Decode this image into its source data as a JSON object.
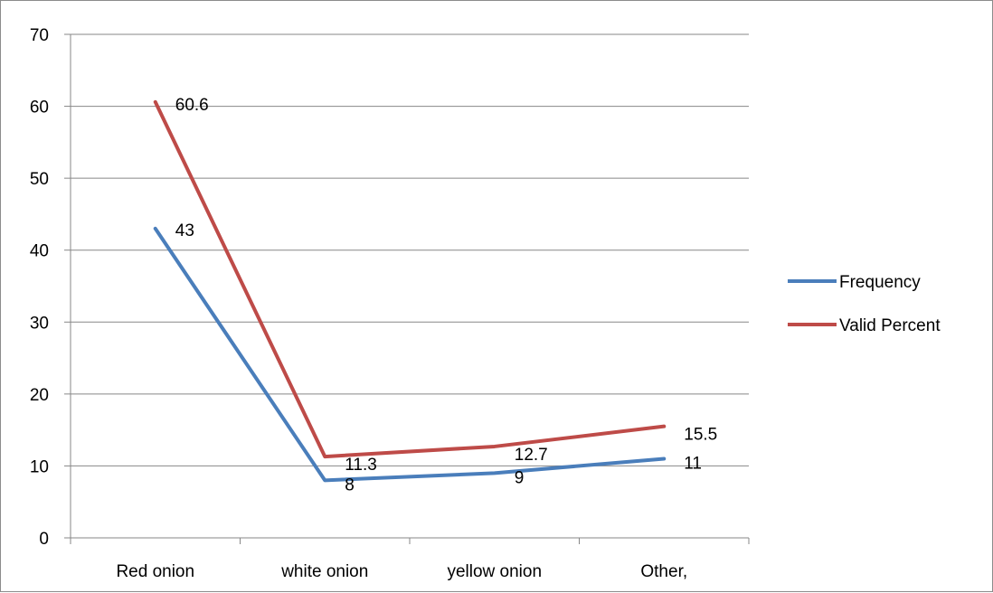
{
  "chart_data": {
    "type": "line",
    "categories": [
      "Red onion",
      "white onion",
      "yellow onion",
      "Other,"
    ],
    "ylim": [
      0,
      70
    ],
    "yticks": [
      0,
      10,
      20,
      30,
      40,
      50,
      60,
      70
    ],
    "grid": true,
    "legend_position": "right",
    "series": [
      {
        "name": "Frequency",
        "values": [
          43,
          8,
          9,
          11
        ],
        "color": "#4a7ebb"
      },
      {
        "name": "Valid Percent",
        "values": [
          60.6,
          11.3,
          12.7,
          15.5
        ],
        "color": "#be4b48"
      }
    ],
    "data_labels": [
      [
        "43",
        "8",
        "9",
        "11"
      ],
      [
        "60.6",
        "11.3",
        "12.7",
        "15.5"
      ]
    ]
  }
}
